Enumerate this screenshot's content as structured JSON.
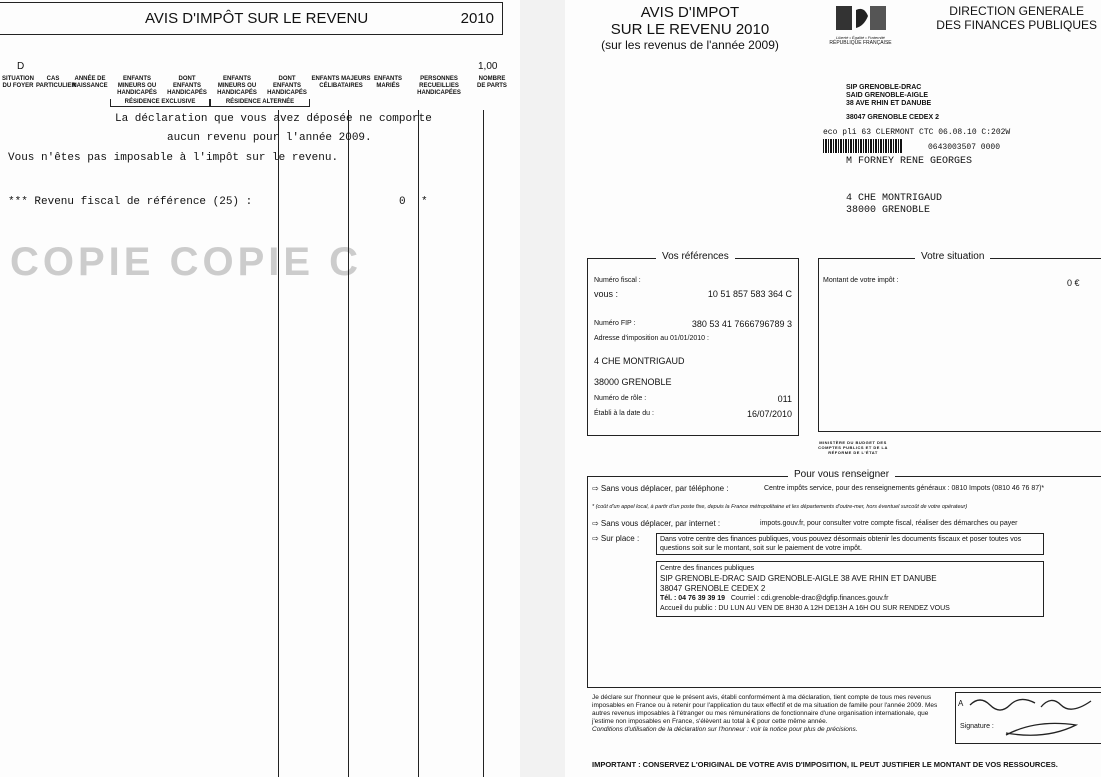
{
  "left_page": {
    "header_title": "AVIS D'IMPÔT SUR LE REVENU",
    "header_year": "2010",
    "situation_code": "D",
    "parts_value": "1,00",
    "watermark": "COPIE COPIE C",
    "columns": [
      "SITUATION DU FOYER",
      "CAS PARTICULIER",
      "ANNÉE DE NAISSANCE",
      "ENFANTS MINEURS OU HANDICAPÉS",
      "DONT ENFANTS HANDICAPÉS",
      "ENFANTS MINEURS OU HANDICAPÉS",
      "DONT ENFANTS HANDICAPÉS",
      "ENFANTS MAJEURS CÉLIBATAIRES",
      "ENFANTS MARIÉS",
      "PERSONNES RECUEILLIES HANDICAPÉES",
      "NOMBRE DE PARTS"
    ],
    "group_exclusive": "RÉSIDENCE EXCLUSIVE",
    "group_alternate": "RÉSIDENCE ALTERNÉE",
    "line1": "La déclaration que vous avez déposée ne comporte",
    "line2": "aucun revenu pour l'année 2009.",
    "line3": "Vous n'êtes pas imposable à l'impôt sur le revenu.",
    "rfr_label": "*** Revenu fiscal de référence (25) :",
    "rfr_value": "0",
    "rfr_star": "*"
  },
  "right_page": {
    "title1": "AVIS D'IMPOT",
    "title2": "SUR LE REVENU 2010",
    "title3": "(sur les revenus de l'année 2009)",
    "logo_motto": "Liberté • Égalité • Fraternité",
    "logo_name": "RÉPUBLIQUE FRANÇAISE",
    "dgfip1": "DIRECTION GENERALE",
    "dgfip2": "DES FINANCES PUBLIQUES",
    "sender": [
      "SIP GRENOBLE-DRAC",
      "SAID GRENOBLE-AIGLE",
      "38 AVE RHIN ET DANUBE",
      "38047 GRENOBLE CEDEX 2"
    ],
    "postal_line": "eco pli 63 CLERMONT CTC 06.08.10 C:202W",
    "barcode_number": "0643003507 0000",
    "recipient_name": "M FORNEY RENE GEORGES",
    "recipient_addr1": "4 CHE MONTRIGAUD",
    "recipient_addr2": "38000 GRENOBLE",
    "refs": {
      "title": "Vos références",
      "fiscal_label": "Numéro fiscal :",
      "vous_label": "vous :",
      "fiscal_value": "10 51 857 583 364 C",
      "fip_label": "Numéro FIP :",
      "fip_value": "380 53 41 7666796789 3",
      "address_label": "Adresse d'imposition au 01/01/2010 :",
      "addr1": "4 CHE MONTRIGAUD",
      "addr2": "38000 GRENOBLE",
      "role_label": "Numéro de rôle :",
      "role_value": "011",
      "date_label": "Établi à la date du :",
      "date_value": "16/07/2010"
    },
    "situation": {
      "title": "Votre situation",
      "amount_label": "Montant de votre impôt :",
      "amount_value": "0 €"
    },
    "ministry": "MINISTÈRE DU BUDGET DES COMPTES PUBLICS ET DE LA RÉFORME DE L'ÉTAT",
    "info": {
      "title": "Pour vous renseigner",
      "phone_label": "⇨ Sans vous déplacer, par téléphone :",
      "phone_text": "Centre impôts service, pour des renseignements généraux : 0810 Impots (0810 46 76 87)*",
      "footnote": "* (coût d'un appel local, à partir d'un poste fixe, depuis la France métropolitaine et les départements d'outre-mer, hors éventuel surcoût de votre opérateur)",
      "internet_label": "⇨ Sans vous déplacer, par internet :",
      "internet_text": "impots.gouv.fr, pour consulter votre compte fiscal, réaliser des démarches ou payer",
      "place_label": "⇨ Sur place :",
      "place_text": "Dans votre centre des finances publiques, vous pouvez désormais obtenir les documents fiscaux et poser toutes vos questions soit sur le montant, soit sur le paiement de votre impôt.",
      "centre_title": "Centre des finances publiques",
      "centre_addr1": "SIP GRENOBLE-DRAC SAID GRENOBLE-AIGLE 38 AVE RHIN ET DANUBE",
      "centre_addr2": "38047 GRENOBLE CEDEX 2",
      "tel": "Tél. : 04 76 39 39 19",
      "email": "Courriel : cdi.grenoble-drac@dgfip.finances.gouv.fr",
      "hours": "Accueil du public : DU LUN AU VEN DE 8H30 A 12H DE13H A 16H OU SUR RENDEZ VOUS"
    },
    "declaration": "Je déclare sur l'honneur que le présent avis, établi conformément à ma déclaration, tient compte de tous mes revenus imposables en France ou à retenir pour l'application du taux effectif et de ma situation de famille pour l'année 2009. Mes autres revenus imposables à l'étranger ou mes rémunérations de fonctionnaire d'une organisation internationale, que j'estime non imposables en France, s'élèvent au total à            € pour cette même année.",
    "conditions": "Conditions d'utilisation de la déclaration sur l'honneur : voir la notice pour plus de précisions.",
    "sign_at": "A",
    "sign_label": "Signature :",
    "important": "IMPORTANT : CONSERVEZ L'ORIGINAL DE VOTRE AVIS D'IMPOSITION, IL PEUT JUSTIFIER LE MONTANT DE VOS RESSOURCES."
  }
}
